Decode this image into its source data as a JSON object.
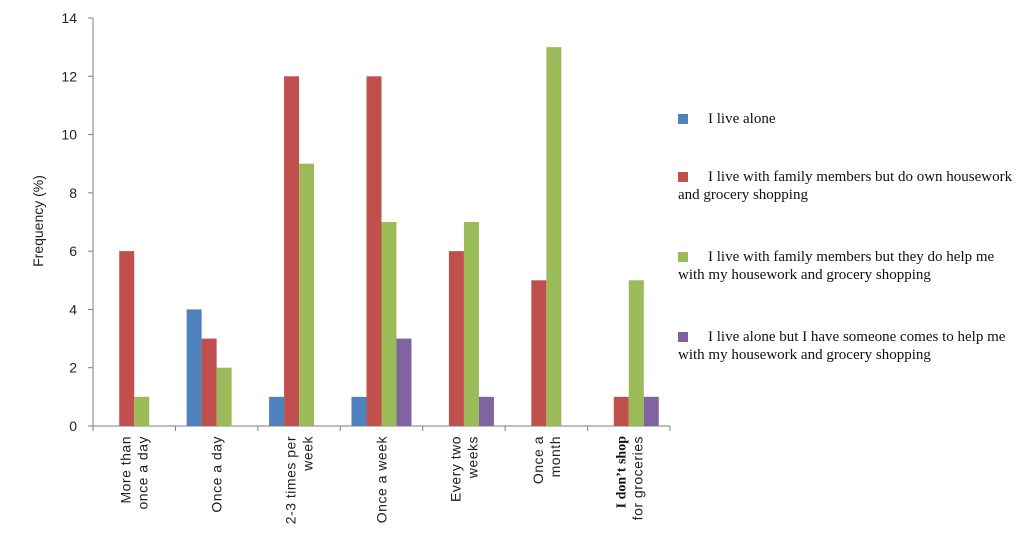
{
  "chart_data": {
    "type": "bar",
    "ylabel": "Frequency (%)",
    "xlabel": "",
    "ylim": [
      0,
      14
    ],
    "yticks": [
      0,
      2,
      4,
      6,
      8,
      10,
      12,
      14
    ],
    "grid": false,
    "legend_position": "right",
    "categories": [
      {
        "lines": [
          "More than",
          "once a day"
        ],
        "bold_lines": []
      },
      {
        "lines": [
          "Once a day"
        ],
        "bold_lines": []
      },
      {
        "lines": [
          "2-3 times per",
          "week"
        ],
        "bold_lines": []
      },
      {
        "lines": [
          "Once a week"
        ],
        "bold_lines": []
      },
      {
        "lines": [
          "Every two",
          "weeks"
        ],
        "bold_lines": []
      },
      {
        "lines": [
          "Once a",
          "month"
        ],
        "bold_lines": []
      },
      {
        "lines": [
          "I don’t shop",
          "for groceries"
        ],
        "bold_lines": [
          0
        ]
      }
    ],
    "series": [
      {
        "name": "I live alone",
        "color": "#4F81BD",
        "values": [
          0,
          4,
          1,
          1,
          0,
          0,
          0
        ]
      },
      {
        "name": "I live with family members but do own housework and grocery shopping",
        "color": "#C0504D",
        "values": [
          6,
          3,
          12,
          12,
          6,
          5,
          1
        ]
      },
      {
        "name": "I live with family members but they do help me with my housework and grocery shopping",
        "color": "#9BBB59",
        "values": [
          1,
          2,
          9,
          7,
          7,
          13,
          5
        ]
      },
      {
        "name": "I live alone but I have someone comes to help me with my housework and grocery shopping",
        "color": "#8064A2",
        "values": [
          0,
          0,
          0,
          3,
          1,
          0,
          1
        ]
      }
    ]
  }
}
